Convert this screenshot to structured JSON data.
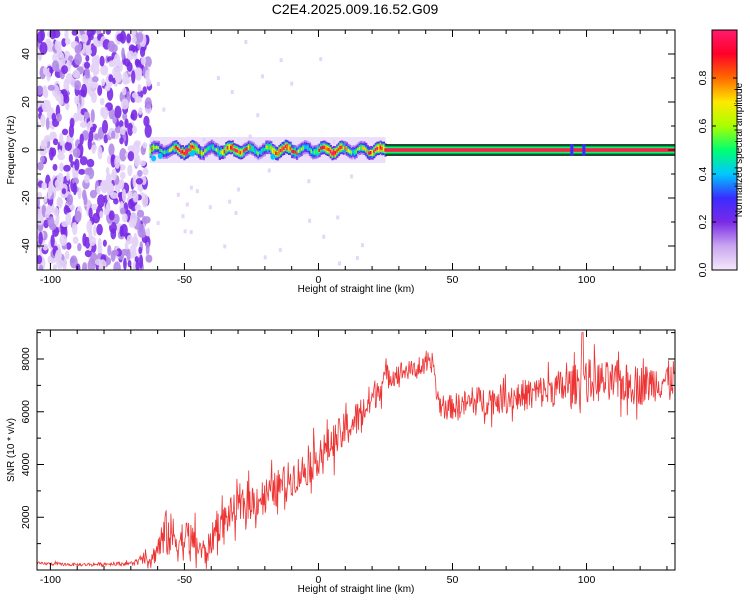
{
  "title": "C2E4.2025.009.16.52.G09",
  "chart_data": [
    {
      "type": "heatmap",
      "xlabel": "Height of straight line (km)",
      "ylabel": "Frequency (Hz)",
      "xlim": [
        -105,
        133
      ],
      "ylim": [
        -50,
        50
      ],
      "x_ticks": [
        -100,
        -50,
        0,
        50,
        100
      ],
      "y_ticks": [
        -40,
        -20,
        0,
        20,
        40
      ],
      "colorbar": {
        "label": "Normalized spectral amplitude",
        "range": [
          0.0,
          1.0
        ],
        "ticks": [
          0.0,
          0.2,
          0.4,
          0.6,
          0.8
        ],
        "tick_labels": [
          "0.0",
          "0.2",
          "0.4",
          "0.6",
          "0.8"
        ],
        "colors": [
          "#f4e8fa",
          "#c9a6f0",
          "#7a2ae6",
          "#3a2cff",
          "#00c8ff",
          "#00ff70",
          "#a8ff00",
          "#ffe800",
          "#ff6a00",
          "#ff0028",
          "#ff1c6e"
        ]
      },
      "regions": [
        {
          "x_range": [
            -105,
            -63
          ],
          "y_range": [
            -50,
            50
          ],
          "amplitude_range": [
            0.0,
            0.15
          ],
          "pattern": "noise"
        },
        {
          "x_range": [
            -63,
            25
          ],
          "y_center": 0,
          "y_halfwidth": 3,
          "amplitude_range": [
            0.2,
            1.0
          ],
          "pattern": "fragmented carrier line"
        },
        {
          "x_range": [
            25,
            133
          ],
          "y_center": 0,
          "y_halfwidth": 1.5,
          "amplitude": 1.0,
          "pattern": "solid carrier line"
        }
      ]
    },
    {
      "type": "line",
      "xlabel": "Height of straight line (km)",
      "ylabel": "SNR (10 * v/v)",
      "xlim": [
        -105,
        133
      ],
      "ylim": [
        0,
        9100
      ],
      "x_ticks": [
        -100,
        -50,
        0,
        50,
        100
      ],
      "y_ticks": [
        2000,
        4000,
        6000,
        8000
      ],
      "color": "#ee3333",
      "series_envelope": {
        "x": [
          -105,
          -90,
          -70,
          -62,
          -57,
          -52,
          -48,
          -45,
          -42,
          -38,
          -32,
          -25,
          -18,
          -10,
          -5,
          0,
          5,
          10,
          15,
          20,
          25,
          30,
          35,
          40,
          43,
          44,
          46,
          50,
          60,
          70,
          80,
          90,
          95,
          100,
          110,
          120,
          133
        ],
        "center": [
          250,
          200,
          250,
          450,
          1400,
          1100,
          1200,
          900,
          600,
          1600,
          2200,
          2600,
          2900,
          3500,
          3800,
          4300,
          4800,
          5300,
          5800,
          6500,
          7300,
          7500,
          7600,
          7700,
          7800,
          6700,
          6100,
          6200,
          6400,
          6500,
          6700,
          6900,
          7000,
          7200,
          7100,
          7000,
          7300
        ],
        "spread": [
          80,
          80,
          100,
          400,
          1300,
          1200,
          1000,
          900,
          700,
          900,
          900,
          1000,
          1000,
          1000,
          1000,
          1000,
          1000,
          1000,
          1000,
          900,
          700,
          600,
          500,
          500,
          400,
          600,
          600,
          700,
          800,
          800,
          900,
          1000,
          1100,
          1200,
          1100,
          1100,
          1000
        ]
      }
    }
  ]
}
